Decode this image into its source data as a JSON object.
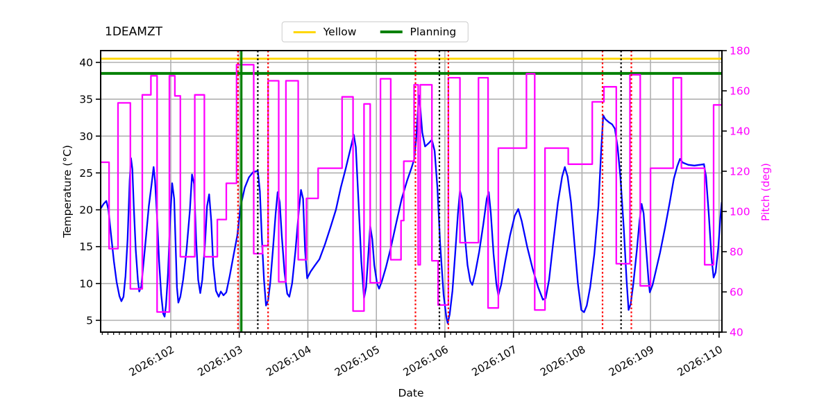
{
  "title": "1DEAMZT",
  "chart_data": {
    "type": "line",
    "title": "1DEAMZT",
    "x_axis": {
      "label": "Date",
      "range": [
        100.977,
        110.042
      ],
      "major_ticks": [
        102,
        103,
        104,
        105,
        106,
        107,
        108,
        109,
        110
      ],
      "major_tick_labels": [
        "2026:102",
        "2026:103",
        "2026:104",
        "2026:105",
        "2026:106",
        "2026:107",
        "2026:108",
        "2026:109",
        "2026:110"
      ],
      "minor_ticks_per_day": 12
    },
    "y_axis_left": {
      "label": "Temperature (°C)",
      "range": [
        3.4,
        41.6
      ],
      "ticks": [
        5,
        10,
        15,
        20,
        25,
        30,
        35,
        40
      ],
      "color": "#000000"
    },
    "y_axis_right": {
      "label": "Pitch (deg)",
      "range": [
        40,
        180
      ],
      "ticks": [
        40,
        60,
        80,
        100,
        120,
        140,
        160,
        180
      ],
      "color": "#ff00ff"
    },
    "grid": {
      "show": true,
      "color": "#b0b0b0"
    },
    "limit_lines": [
      {
        "name": "Yellow",
        "value_temp": 40.5,
        "color": "#ffd700",
        "width": 2.8
      },
      {
        "name": "Planning",
        "value_temp": 38.5,
        "color": "#008000",
        "width": 4
      }
    ],
    "vertical_lines": [
      {
        "day": 102.98,
        "color": "#ff0000",
        "style": "dotted"
      },
      {
        "day": 103.03,
        "color": "#008000",
        "style": "solid"
      },
      {
        "day": 103.27,
        "color": "#000000",
        "style": "dotted"
      },
      {
        "day": 103.42,
        "color": "#ff0000",
        "style": "dotted"
      },
      {
        "day": 105.57,
        "color": "#ff0000",
        "style": "dotted"
      },
      {
        "day": 105.92,
        "color": "#000000",
        "style": "dotted"
      },
      {
        "day": 106.05,
        "color": "#ff0000",
        "style": "dotted"
      },
      {
        "day": 108.3,
        "color": "#ff0000",
        "style": "dotted"
      },
      {
        "day": 108.57,
        "color": "#000000",
        "style": "dotted"
      },
      {
        "day": 108.72,
        "color": "#ff0000",
        "style": "dotted"
      }
    ],
    "series": [
      {
        "name": "temperature",
        "axis": "left",
        "style": "line",
        "color": "#0000ff",
        "points": [
          [
            100.98,
            20.2
          ],
          [
            101.02,
            20.8
          ],
          [
            101.06,
            21.2
          ],
          [
            101.09,
            20.0
          ],
          [
            101.13,
            16.5
          ],
          [
            101.17,
            13.0
          ],
          [
            101.21,
            10.2
          ],
          [
            101.25,
            8.3
          ],
          [
            101.28,
            7.6
          ],
          [
            101.31,
            8.2
          ],
          [
            101.34,
            11.0
          ],
          [
            101.37,
            16.0
          ],
          [
            101.4,
            24.0
          ],
          [
            101.42,
            27.0
          ],
          [
            101.44,
            25.5
          ],
          [
            101.46,
            20.5
          ],
          [
            101.49,
            14.5
          ],
          [
            101.52,
            10.5
          ],
          [
            101.54,
            8.9
          ],
          [
            101.57,
            9.6
          ],
          [
            101.6,
            12.5
          ],
          [
            101.64,
            16.5
          ],
          [
            101.68,
            20.5
          ],
          [
            101.72,
            23.5
          ],
          [
            101.75,
            25.8
          ],
          [
            101.77,
            24.0
          ],
          [
            101.8,
            19.0
          ],
          [
            101.83,
            13.0
          ],
          [
            101.86,
            8.5
          ],
          [
            101.89,
            5.9
          ],
          [
            101.91,
            5.5
          ],
          [
            101.93,
            7.0
          ],
          [
            101.96,
            11.5
          ],
          [
            101.99,
            18.5
          ],
          [
            102.02,
            23.6
          ],
          [
            102.05,
            21.5
          ],
          [
            102.07,
            15.5
          ],
          [
            102.09,
            9.5
          ],
          [
            102.11,
            7.4
          ],
          [
            102.14,
            8.2
          ],
          [
            102.18,
            10.5
          ],
          [
            102.23,
            14.5
          ],
          [
            102.28,
            20.0
          ],
          [
            102.31,
            24.8
          ],
          [
            102.34,
            23.5
          ],
          [
            102.37,
            16.0
          ],
          [
            102.4,
            10.5
          ],
          [
            102.43,
            8.7
          ],
          [
            102.46,
            10.5
          ],
          [
            102.5,
            15.5
          ],
          [
            102.53,
            20.5
          ],
          [
            102.56,
            22.1
          ],
          [
            102.59,
            18.5
          ],
          [
            102.62,
            12.5
          ],
          [
            102.66,
            9.0
          ],
          [
            102.7,
            8.2
          ],
          [
            102.73,
            8.9
          ],
          [
            102.77,
            8.4
          ],
          [
            102.81,
            8.8
          ],
          [
            102.86,
            11.0
          ],
          [
            102.92,
            14.0
          ],
          [
            102.97,
            16.5
          ],
          [
            103.02,
            20.5
          ],
          [
            103.08,
            23.0
          ],
          [
            103.14,
            24.4
          ],
          [
            103.2,
            25.1
          ],
          [
            103.27,
            25.3
          ],
          [
            103.3,
            22.5
          ],
          [
            103.33,
            16.0
          ],
          [
            103.36,
            10.5
          ],
          [
            103.39,
            7.0
          ],
          [
            103.42,
            7.7
          ],
          [
            103.45,
            10.0
          ],
          [
            103.49,
            14.5
          ],
          [
            103.53,
            19.5
          ],
          [
            103.56,
            22.4
          ],
          [
            103.59,
            21.0
          ],
          [
            103.62,
            16.5
          ],
          [
            103.66,
            11.5
          ],
          [
            103.7,
            8.6
          ],
          [
            103.73,
            8.2
          ],
          [
            103.77,
            10.0
          ],
          [
            103.82,
            14.5
          ],
          [
            103.87,
            20.0
          ],
          [
            103.9,
            22.7
          ],
          [
            103.93,
            21.5
          ],
          [
            103.96,
            14.5
          ],
          [
            103.99,
            10.7
          ],
          [
            104.04,
            11.6
          ],
          [
            104.1,
            12.4
          ],
          [
            104.17,
            13.3
          ],
          [
            104.25,
            15.3
          ],
          [
            104.33,
            17.6
          ],
          [
            104.41,
            20.0
          ],
          [
            104.48,
            23.0
          ],
          [
            104.55,
            25.5
          ],
          [
            104.62,
            28.2
          ],
          [
            104.67,
            30.2
          ],
          [
            104.7,
            28.5
          ],
          [
            104.74,
            21.0
          ],
          [
            104.78,
            13.0
          ],
          [
            104.82,
            8.0
          ],
          [
            104.85,
            9.5
          ],
          [
            104.88,
            13.5
          ],
          [
            104.91,
            17.8
          ],
          [
            104.94,
            16.0
          ],
          [
            104.97,
            12.5
          ],
          [
            105.01,
            10.0
          ],
          [
            105.04,
            9.3
          ],
          [
            105.08,
            10.3
          ],
          [
            105.14,
            12.2
          ],
          [
            105.21,
            14.8
          ],
          [
            105.29,
            18.2
          ],
          [
            105.37,
            21.5
          ],
          [
            105.45,
            24.0
          ],
          [
            105.51,
            25.6
          ],
          [
            105.55,
            26.8
          ],
          [
            105.58,
            29.5
          ],
          [
            105.62,
            35.5
          ],
          [
            105.64,
            34.0
          ],
          [
            105.67,
            30.5
          ],
          [
            105.71,
            28.6
          ],
          [
            105.76,
            29.0
          ],
          [
            105.81,
            29.5
          ],
          [
            105.85,
            28.0
          ],
          [
            105.89,
            23.0
          ],
          [
            105.93,
            15.5
          ],
          [
            105.98,
            8.5
          ],
          [
            106.02,
            5.5
          ],
          [
            106.04,
            4.6
          ],
          [
            106.07,
            5.8
          ],
          [
            106.11,
            9.0
          ],
          [
            106.15,
            14.0
          ],
          [
            106.19,
            19.5
          ],
          [
            106.22,
            22.6
          ],
          [
            106.25,
            21.5
          ],
          [
            106.29,
            16.5
          ],
          [
            106.33,
            12.5
          ],
          [
            106.37,
            10.3
          ],
          [
            106.4,
            9.8
          ],
          [
            106.44,
            11.3
          ],
          [
            106.5,
            14.3
          ],
          [
            106.56,
            18.0
          ],
          [
            106.61,
            21.5
          ],
          [
            106.64,
            22.4
          ],
          [
            106.67,
            19.5
          ],
          [
            106.71,
            14.0
          ],
          [
            106.75,
            10.0
          ],
          [
            106.78,
            8.4
          ],
          [
            106.82,
            9.8
          ],
          [
            106.88,
            13.0
          ],
          [
            106.95,
            16.5
          ],
          [
            107.02,
            19.2
          ],
          [
            107.07,
            20.1
          ],
          [
            107.12,
            18.5
          ],
          [
            107.2,
            15.0
          ],
          [
            107.28,
            12.0
          ],
          [
            107.36,
            9.5
          ],
          [
            107.43,
            7.8
          ],
          [
            107.47,
            8.0
          ],
          [
            107.52,
            10.5
          ],
          [
            107.58,
            15.5
          ],
          [
            107.65,
            21.0
          ],
          [
            107.71,
            24.5
          ],
          [
            107.75,
            25.8
          ],
          [
            107.79,
            24.5
          ],
          [
            107.84,
            21.0
          ],
          [
            107.89,
            15.5
          ],
          [
            107.94,
            10.0
          ],
          [
            107.99,
            6.4
          ],
          [
            108.03,
            6.1
          ],
          [
            108.07,
            7.0
          ],
          [
            108.12,
            9.5
          ],
          [
            108.18,
            14.0
          ],
          [
            108.24,
            20.5
          ],
          [
            108.28,
            28.0
          ],
          [
            108.31,
            32.8
          ],
          [
            108.34,
            32.3
          ],
          [
            108.39,
            31.9
          ],
          [
            108.44,
            31.6
          ],
          [
            108.48,
            31.0
          ],
          [
            108.52,
            28.5
          ],
          [
            108.56,
            24.5
          ],
          [
            108.61,
            17.5
          ],
          [
            108.65,
            10.5
          ],
          [
            108.68,
            6.4
          ],
          [
            108.71,
            7.2
          ],
          [
            108.75,
            10.0
          ],
          [
            108.8,
            14.5
          ],
          [
            108.84,
            18.5
          ],
          [
            108.87,
            20.8
          ],
          [
            108.9,
            19.5
          ],
          [
            108.93,
            15.5
          ],
          [
            108.97,
            10.5
          ],
          [
            108.99,
            8.8
          ],
          [
            109.03,
            9.8
          ],
          [
            109.08,
            11.8
          ],
          [
            109.14,
            14.2
          ],
          [
            109.21,
            17.5
          ],
          [
            109.28,
            21.0
          ],
          [
            109.34,
            24.2
          ],
          [
            109.39,
            25.9
          ],
          [
            109.43,
            26.9
          ],
          [
            109.47,
            26.4
          ],
          [
            109.55,
            26.1
          ],
          [
            109.64,
            26.0
          ],
          [
            109.72,
            26.1
          ],
          [
            109.78,
            26.2
          ],
          [
            109.81,
            24.5
          ],
          [
            109.85,
            19.5
          ],
          [
            109.89,
            13.5
          ],
          [
            109.92,
            10.8
          ],
          [
            109.95,
            11.5
          ],
          [
            109.99,
            15.0
          ],
          [
            110.02,
            19.0
          ],
          [
            110.04,
            21.0
          ]
        ]
      },
      {
        "name": "pitch",
        "axis": "right",
        "style": "step",
        "color": "#ff00ff",
        "end_day": 110.042,
        "steps": [
          [
            100.977,
            124.5
          ],
          [
            101.1,
            81.5
          ],
          [
            101.23,
            154
          ],
          [
            101.41,
            61.5
          ],
          [
            101.585,
            158
          ],
          [
            101.71,
            167.5
          ],
          [
            101.8,
            50
          ],
          [
            101.98,
            167.5
          ],
          [
            102.06,
            157.5
          ],
          [
            102.14,
            77.5
          ],
          [
            102.35,
            158
          ],
          [
            102.49,
            77.5
          ],
          [
            102.68,
            96
          ],
          [
            102.81,
            114
          ],
          [
            102.96,
            173
          ],
          [
            103.21,
            79
          ],
          [
            103.34,
            83
          ],
          [
            103.42,
            165
          ],
          [
            103.575,
            65
          ],
          [
            103.68,
            165
          ],
          [
            103.86,
            76
          ],
          [
            103.98,
            106.5
          ],
          [
            104.15,
            121.5
          ],
          [
            104.5,
            157
          ],
          [
            104.66,
            50.5
          ],
          [
            104.82,
            153.5
          ],
          [
            104.91,
            64.5
          ],
          [
            105.06,
            166
          ],
          [
            105.21,
            76
          ],
          [
            105.36,
            95.5
          ],
          [
            105.4,
            125
          ],
          [
            105.55,
            163
          ],
          [
            105.61,
            73.5
          ],
          [
            105.64,
            163
          ],
          [
            105.81,
            75.5
          ],
          [
            105.9,
            53.5
          ],
          [
            106.05,
            166.5
          ],
          [
            106.22,
            84.5
          ],
          [
            106.49,
            166.5
          ],
          [
            106.63,
            52
          ],
          [
            106.78,
            131.5
          ],
          [
            107.19,
            168.5
          ],
          [
            107.31,
            51
          ],
          [
            107.46,
            131.5
          ],
          [
            107.8,
            123.5
          ],
          [
            108.15,
            154.5
          ],
          [
            108.32,
            162
          ],
          [
            108.5,
            74
          ],
          [
            108.7,
            168
          ],
          [
            108.85,
            63
          ],
          [
            109.0,
            121.5
          ],
          [
            109.33,
            166.5
          ],
          [
            109.45,
            121.5
          ],
          [
            109.79,
            73.5
          ],
          [
            109.92,
            153
          ]
        ]
      }
    ]
  }
}
